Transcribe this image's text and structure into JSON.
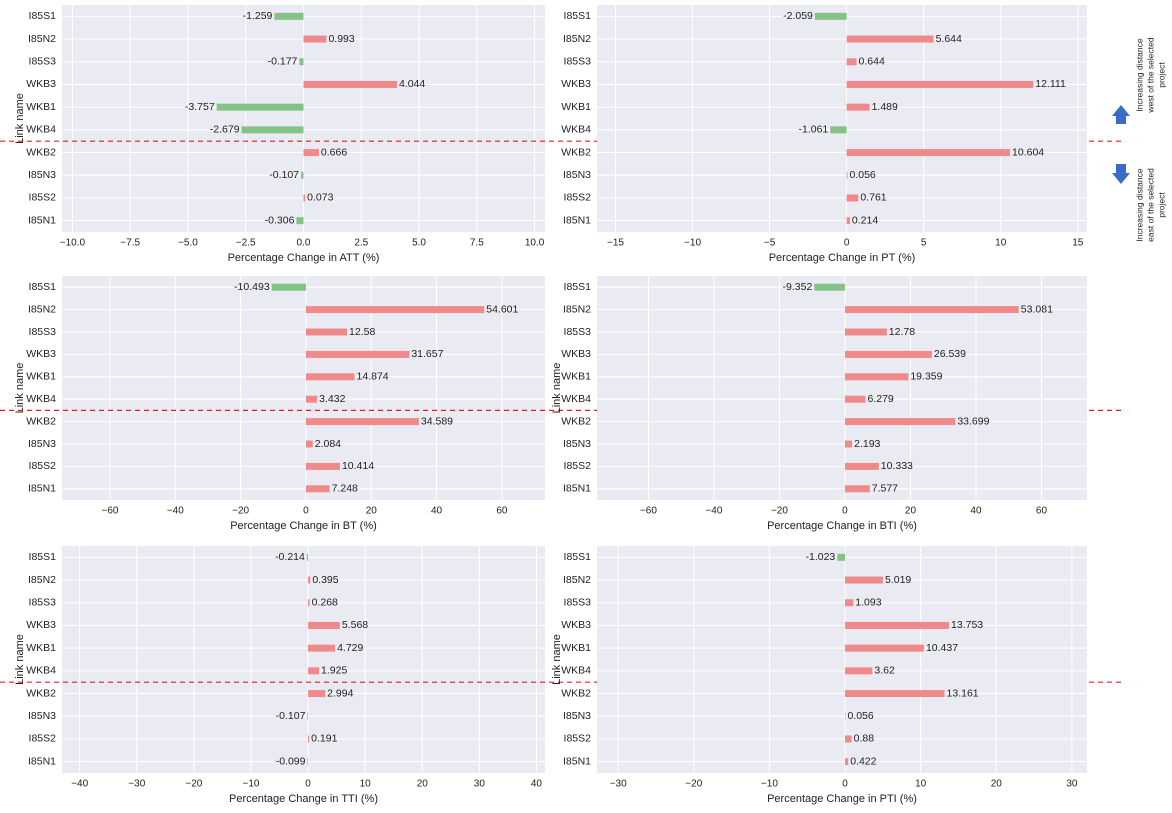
{
  "chart_data": [
    {
      "type": "bar",
      "orientation": "horizontal",
      "x_label": "Percentage Change in ATT (%)",
      "y_label": "Link name",
      "categories": [
        "I85S1",
        "I85N2",
        "I85S3",
        "WKB3",
        "WKB1",
        "WKB4",
        "WKB2",
        "I85N3",
        "I85S2",
        "I85N1"
      ],
      "values": [
        -1.259,
        0.993,
        -0.177,
        4.044,
        -3.757,
        -2.679,
        0.666,
        -0.107,
        0.073,
        -0.306
      ],
      "xlim": [
        -10.45,
        10.45
      ],
      "xticks": [
        {
          "value": -10,
          "label": "−10.0"
        },
        {
          "value": -7.5,
          "label": "−7.5"
        },
        {
          "value": -5,
          "label": "−5.0"
        },
        {
          "value": -2.5,
          "label": "−2.5"
        },
        {
          "value": 0,
          "label": "0.0"
        },
        2.5,
        {
          "value": 5,
          "label": "5.0"
        },
        7.5,
        {
          "value": 10,
          "label": "10.0"
        }
      ],
      "colors": {
        "positive": "#f08a8a",
        "negative": "#85c285"
      },
      "grid": true
    },
    {
      "type": "bar",
      "orientation": "horizontal",
      "x_label": "Percentage Change in PT (%)",
      "categories": [
        "I85S1",
        "I85N2",
        "I85S3",
        "WKB3",
        "WKB1",
        "WKB4",
        "WKB2",
        "I85N3",
        "I85S2",
        "I85N1"
      ],
      "values": [
        -2.059,
        5.644,
        0.644,
        12.111,
        1.489,
        -1.061,
        10.604,
        0.056,
        0.761,
        0.214
      ],
      "xlim": [
        -16.2,
        15.6
      ],
      "xticks": [
        {
          "value": -15,
          "label": "−15"
        },
        {
          "value": -10,
          "label": "−10"
        },
        {
          "value": -5,
          "label": "−5"
        },
        0,
        5,
        10,
        15
      ],
      "colors": {
        "positive": "#f08a8a",
        "negative": "#85c285"
      },
      "grid": true
    },
    {
      "type": "bar",
      "orientation": "horizontal",
      "x_label": "Percentage Change in BT (%)",
      "y_label": "Link name",
      "categories": [
        "I85S1",
        "I85N2",
        "I85S3",
        "WKB3",
        "WKB1",
        "WKB4",
        "WKB2",
        "I85N3",
        "I85S2",
        "I85N1"
      ],
      "values": [
        -10.493,
        54.601,
        12.58,
        31.657,
        14.874,
        3.432,
        34.589,
        2.084,
        10.414,
        7.248
      ],
      "xlim": [
        -74.7,
        73.2
      ],
      "xticks": [
        {
          "value": -60,
          "label": "−60"
        },
        {
          "value": -40,
          "label": "−40"
        },
        {
          "value": -20,
          "label": "−20"
        },
        0,
        20,
        40,
        60
      ],
      "colors": {
        "positive": "#f08a8a",
        "negative": "#85c285"
      },
      "grid": true
    },
    {
      "type": "bar",
      "orientation": "horizontal",
      "x_label": "Percentage Change in BTI (%)",
      "y_label": "Link name",
      "categories": [
        "I85S1",
        "I85N2",
        "I85S3",
        "WKB3",
        "WKB1",
        "WKB4",
        "WKB2",
        "I85N3",
        "I85S2",
        "I85N1"
      ],
      "values": [
        -9.352,
        53.081,
        12.78,
        26.539,
        19.359,
        6.279,
        33.699,
        2.193,
        10.333,
        7.577
      ],
      "xlim": [
        -75.7,
        73.9
      ],
      "xticks": [
        {
          "value": -60,
          "label": "−60"
        },
        {
          "value": -40,
          "label": "−40"
        },
        {
          "value": -20,
          "label": "−20"
        },
        0,
        20,
        40,
        60
      ],
      "colors": {
        "positive": "#f08a8a",
        "negative": "#85c285"
      },
      "grid": true
    },
    {
      "type": "bar",
      "orientation": "horizontal",
      "x_label": "Percentage Change in TTI (%)",
      "y_label": "Link name",
      "categories": [
        "I85S1",
        "I85N2",
        "I85S3",
        "WKB3",
        "WKB1",
        "WKB4",
        "WKB2",
        "I85N3",
        "I85S2",
        "I85N1"
      ],
      "values": [
        -0.214,
        0.395,
        0.268,
        5.568,
        4.729,
        1.925,
        2.994,
        -0.107,
        0.191,
        -0.099
      ],
      "xlim": [
        -43.1,
        41.5
      ],
      "xticks": [
        {
          "value": -40,
          "label": "−40"
        },
        {
          "value": -30,
          "label": "−30"
        },
        {
          "value": -20,
          "label": "−20"
        },
        {
          "value": -10,
          "label": "−10"
        },
        0,
        10,
        20,
        30,
        40
      ],
      "colors": {
        "positive": "#f08a8a",
        "negative": "#85c285"
      },
      "grid": true
    },
    {
      "type": "bar",
      "orientation": "horizontal",
      "x_label": "Percentage Change in PTI (%)",
      "y_label": "Link name",
      "categories": [
        "I85S1",
        "I85N2",
        "I85S3",
        "WKB3",
        "WKB1",
        "WKB4",
        "WKB2",
        "I85N3",
        "I85S2",
        "I85N1"
      ],
      "values": [
        -1.023,
        5.019,
        1.093,
        13.753,
        10.437,
        3.62,
        13.161,
        0.056,
        0.88,
        0.422
      ],
      "xlim": [
        -32.8,
        32.0
      ],
      "xticks": [
        {
          "value": -30,
          "label": "−30"
        },
        {
          "value": -20,
          "label": "−20"
        },
        {
          "value": -10,
          "label": "−10"
        },
        0,
        10,
        20,
        30
      ],
      "colors": {
        "positive": "#f08a8a",
        "negative": "#85c285"
      },
      "grid": true
    }
  ],
  "annotations": [
    [
      "Increasing distance",
      "west of the selected",
      "project"
    ],
    [
      "Increasing distance",
      "east of the selected",
      "project"
    ]
  ]
}
